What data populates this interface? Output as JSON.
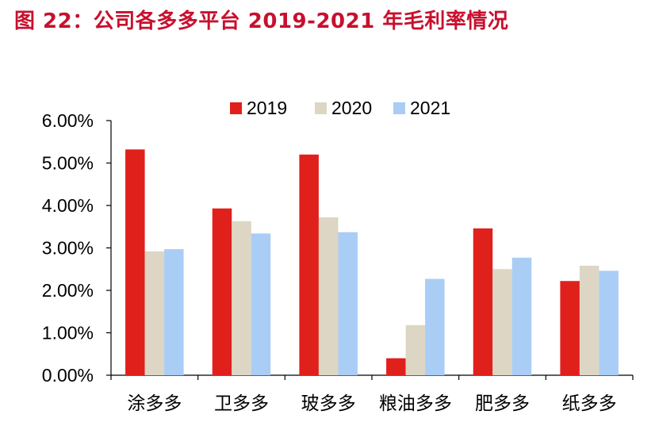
{
  "chart_data": {
    "type": "bar",
    "title": "图 22：公司各多多平台 2019-2021 年毛利率情况",
    "xlabel": "",
    "ylabel": "",
    "ylim": [
      0,
      6
    ],
    "y_ticks": [
      "0.00%",
      "1.00%",
      "2.00%",
      "3.00%",
      "4.00%",
      "5.00%",
      "6.00%"
    ],
    "legend_position": "top-center",
    "categories": [
      "涂多多",
      "卫多多",
      "玻多多",
      "粮油多多",
      "肥多多",
      "纸多多"
    ],
    "series": [
      {
        "name": "2019",
        "color": "#e0201b",
        "values": [
          5.32,
          3.93,
          5.2,
          0.4,
          3.46,
          2.22
        ]
      },
      {
        "name": "2020",
        "color": "#ddd6c4",
        "values": [
          2.92,
          3.63,
          3.72,
          1.18,
          2.5,
          2.58
        ]
      },
      {
        "name": "2021",
        "color": "#a9cdf5",
        "values": [
          2.97,
          3.34,
          3.37,
          2.27,
          2.77,
          2.46
        ]
      }
    ]
  }
}
